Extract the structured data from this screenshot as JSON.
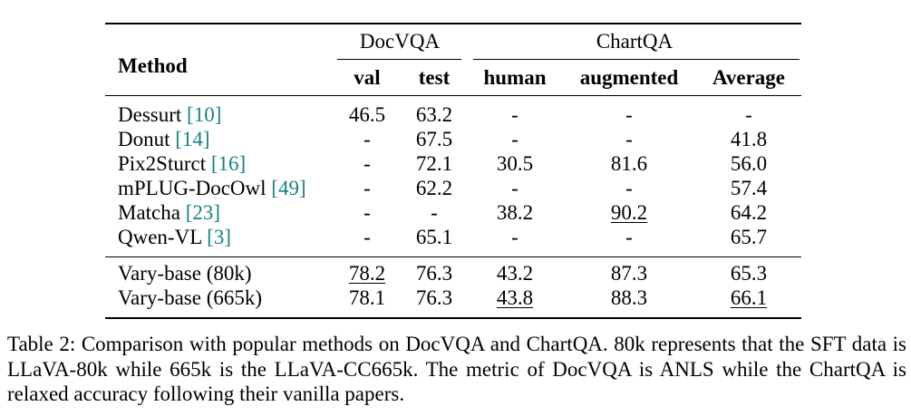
{
  "table": {
    "method_header": "Method",
    "groups": {
      "docvqa": "DocVQA",
      "chartqa": "ChartQA"
    },
    "columns": {
      "val": "val",
      "test": "test",
      "human": "human",
      "augmented": "augmented",
      "average": "Average"
    },
    "rows": [
      {
        "method": "Dessurt ",
        "ref": "[10]",
        "val": "46.5",
        "test": "63.2",
        "human": "-",
        "augmented": "-",
        "average": "-"
      },
      {
        "method": "Donut ",
        "ref": "[14]",
        "val": "-",
        "test": "67.5",
        "human": "-",
        "augmented": "-",
        "average": "41.8"
      },
      {
        "method": "Pix2Sturct ",
        "ref": "[16]",
        "val": "-",
        "test": "72.1",
        "human": "30.5",
        "augmented": "81.6",
        "average": "56.0"
      },
      {
        "method": "mPLUG-DocOwl ",
        "ref": "[49]",
        "val": "-",
        "test": "62.2",
        "human": "-",
        "augmented": "-",
        "average": "57.4"
      },
      {
        "method": "Matcha ",
        "ref": "[23]",
        "val": "-",
        "test": "-",
        "human": "38.2",
        "augmented": "90.2",
        "average": "64.2"
      },
      {
        "method": "Qwen-VL ",
        "ref": "[3]",
        "val": "-",
        "test": "65.1",
        "human": "-",
        "augmented": "-",
        "average": "65.7"
      }
    ],
    "ours": [
      {
        "method": "Vary-base (80k)",
        "val": "78.2",
        "test": "76.3",
        "human": "43.2",
        "augmented": "87.3",
        "average": "65.3"
      },
      {
        "method": "Vary-base (665k)",
        "val": "78.1",
        "test": "76.3",
        "human": "43.8",
        "augmented": "88.3",
        "average": "66.1"
      }
    ]
  },
  "caption": "Table 2: Comparison with popular methods on DocVQA and ChartQA. 80k represents that the SFT data is LLaVA-80k while 665k is the LLaVA-CC665k. The metric of DocVQA is ANLS while the ChartQA is relaxed accuracy following their vanilla papers.",
  "colors": {
    "reference_link": "#1b7f7f",
    "text": "#000000"
  }
}
